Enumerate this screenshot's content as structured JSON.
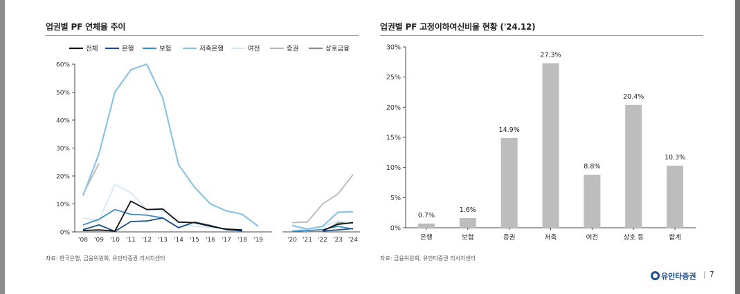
{
  "left_panel": {
    "title": "업권별 PF 연체율 추이",
    "source": "자료: 한국은행, 금융위원회, 유안타증권 리서치센터"
  },
  "right_panel": {
    "title": "업권별 PF 고정이하여신비율 현황 ('24.12)",
    "source": "자료: 금융위원회, 유안타증권 리서치센터"
  },
  "footer": {
    "brand": "유안타증권",
    "page": "7"
  },
  "colors": {
    "전체": "#111111",
    "은행": "#1d4f86",
    "보험": "#3b8cc4",
    "저축은행": "#8cc2e3",
    "여전": "#d3e9f6",
    "증권": "#b8b8b8",
    "상호금융": "#8c8c8c",
    "bar": "#bdbdbd"
  },
  "chart_data": [
    {
      "type": "line",
      "title": "업권별 PF 연체율 추이",
      "x": [
        "'08",
        "'09",
        "'10",
        "'11",
        "'12",
        "'13",
        "'14",
        "'15",
        "'16",
        "'17",
        "'18",
        "'19",
        "'20",
        "'21",
        "'22",
        "'23",
        "'24"
      ],
      "ylim": [
        0,
        60
      ],
      "ytick_labels": [
        "0%",
        "10%",
        "20%",
        "30%",
        "40%",
        "50%",
        "60%"
      ],
      "grid": false,
      "legend_position": "top",
      "note": "x axis has a break between '19 and '20",
      "series": [
        {
          "name": "전체",
          "values": [
            0.5,
            0.7,
            0.3,
            11.0,
            8.0,
            8.2,
            3.5,
            3.3,
            2.0,
            1.0,
            0.7,
            null,
            null,
            null,
            0.5,
            2.7,
            3.3
          ]
        },
        {
          "name": "은행",
          "values": [
            0.8,
            2.5,
            0.2,
            3.7,
            3.9,
            5.0,
            1.5,
            3.5,
            2.3,
            0.8,
            0.4,
            null,
            null,
            null,
            0.3,
            0.7,
            1.2
          ]
        },
        {
          "name": "보험",
          "values": [
            2.5,
            4.5,
            8.0,
            6.3,
            6.0,
            5.0,
            1.5,
            3.5,
            2.2,
            0.8,
            0.3,
            null,
            0.2,
            0.5,
            0.8,
            2.0,
            1.0
          ]
        },
        {
          "name": "저축은행",
          "values": [
            13.0,
            28.0,
            50.0,
            58.0,
            60.0,
            48.0,
            24.0,
            16.0,
            10.0,
            7.5,
            6.3,
            2.0,
            2.3,
            1.0,
            2.0,
            7.0,
            7.2
          ]
        },
        {
          "name": "여전",
          "values": [
            5.0,
            4.0,
            17.0,
            14.0,
            8.0,
            7.5,
            3.0,
            2.0,
            1.5,
            1.0,
            0.7,
            null,
            0.5,
            1.0,
            1.8,
            4.0,
            3.0
          ]
        },
        {
          "name": "증권",
          "values": [
            13.5,
            24.5,
            null,
            null,
            null,
            null,
            null,
            null,
            null,
            null,
            null,
            null,
            3.3,
            3.5,
            10.0,
            13.5,
            20.5
          ]
        },
        {
          "name": "상호금융",
          "values": [
            null,
            null,
            null,
            null,
            null,
            null,
            null,
            null,
            null,
            null,
            null,
            null,
            null,
            0.1,
            0.1,
            3.2,
            3.3
          ]
        }
      ]
    },
    {
      "type": "bar",
      "title": "업권별 PF 고정이하여신비율 현황 ('24.12)",
      "categories": [
        "은행",
        "보험",
        "증권",
        "저축",
        "여전",
        "상호 등",
        "합계"
      ],
      "values": [
        0.7,
        1.6,
        14.9,
        27.3,
        8.8,
        20.4,
        10.3
      ],
      "value_labels": [
        "0.7%",
        "1.6%",
        "14.9%",
        "27.3%",
        "8.8%",
        "20.4%",
        "10.3%"
      ],
      "ylim": [
        0,
        30
      ],
      "ytick_labels": [
        "0%",
        "5%",
        "10%",
        "15%",
        "20%",
        "25%",
        "30%"
      ],
      "grid": false
    }
  ]
}
